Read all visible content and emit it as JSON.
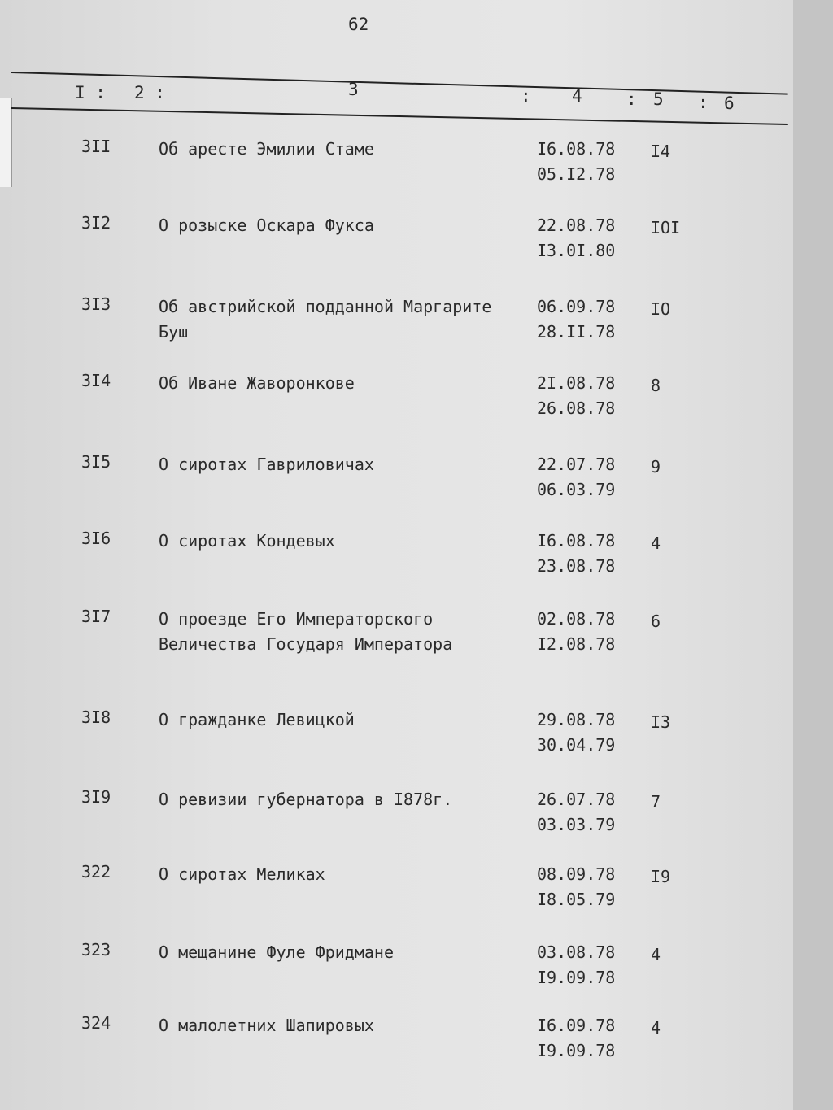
{
  "page_number": "62",
  "header_columns": [
    "I :",
    "2 :",
    "3",
    ":",
    "4",
    ":",
    "5",
    ":",
    "6"
  ],
  "rows": [
    {
      "num": "3II",
      "title": "Об аресте Эмилии Стаме",
      "start": "I6.08.78",
      "end": "05.I2.78",
      "sheets": "I4"
    },
    {
      "num": "3I2",
      "title": "О розыске Оскара Фукса",
      "start": "22.08.78",
      "end": "I3.0I.80",
      "sheets": "IOI"
    },
    {
      "num": "3I3",
      "title": "Об австрийской подданной Маргарите Буш",
      "start": "06.09.78",
      "end": "28.II.78",
      "sheets": "IO"
    },
    {
      "num": "3I4",
      "title": "Об Иване Жаворонкове",
      "start": "2I.08.78",
      "end": "26.08.78",
      "sheets": "8"
    },
    {
      "num": "3I5",
      "title": "О сиротах Гавриловичах",
      "start": "22.07.78",
      "end": "06.03.79",
      "sheets": "9"
    },
    {
      "num": "3I6",
      "title": "О сиротах Кондевых",
      "start": "I6.08.78",
      "end": "23.08.78",
      "sheets": "4"
    },
    {
      "num": "3I7",
      "title": "О проезде Его Императорского Величества Государя Императора",
      "start": "02.08.78",
      "end": "I2.08.78",
      "sheets": "6"
    },
    {
      "num": "3I8",
      "title": "О гражданке Левицкой",
      "start": "29.08.78",
      "end": "30.04.79",
      "sheets": "I3"
    },
    {
      "num": "3I9",
      "title": "О ревизии губернатора в I878г.",
      "start": "26.07.78",
      "end": "03.03.79",
      "sheets": "7"
    },
    {
      "num": "322",
      "title": "О сиротах Меликах",
      "start": "08.09.78",
      "end": "I8.05.79",
      "sheets": "I9"
    },
    {
      "num": "323",
      "title": "О мещанине Фуле Фридмане",
      "start": "03.08.78",
      "end": "I9.09.78",
      "sheets": "4"
    },
    {
      "num": "324",
      "title": "О малолетних Шапировых",
      "start": "I6.09.78",
      "end": "I9.09.78",
      "sheets": "4"
    }
  ]
}
